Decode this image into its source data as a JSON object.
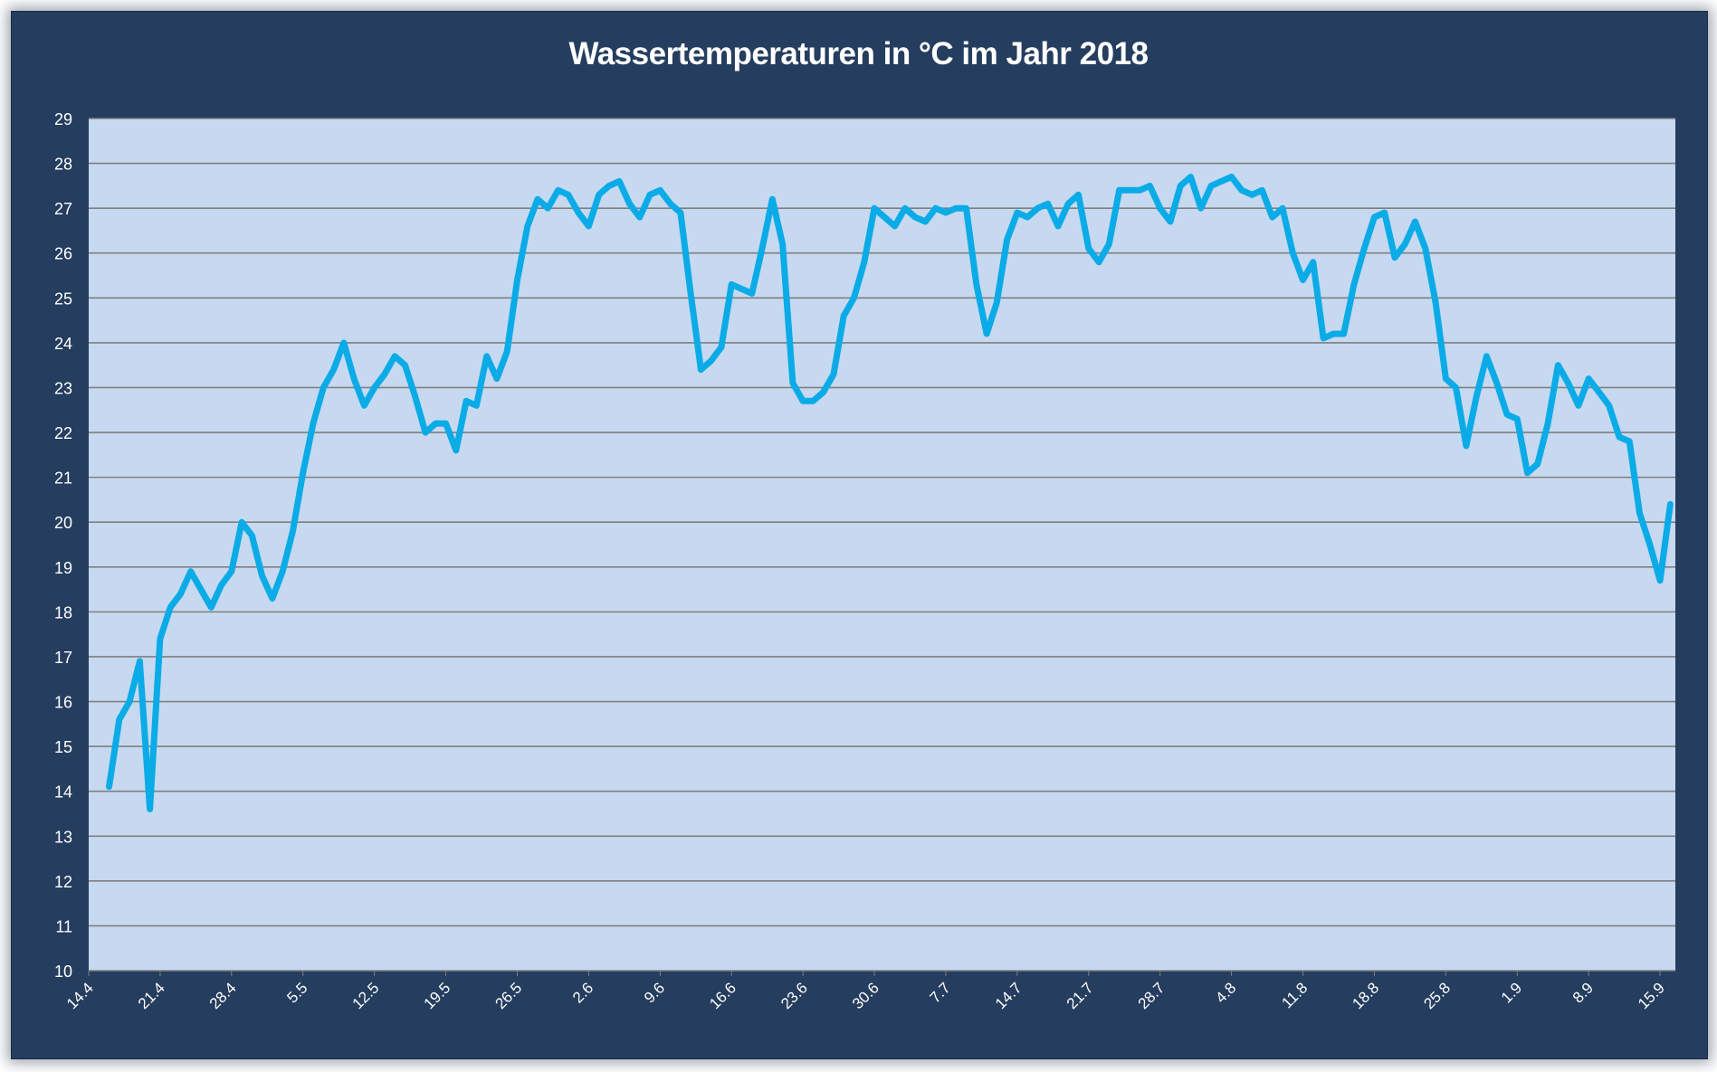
{
  "chart_data": {
    "type": "line",
    "title": "Wassertemperaturen in °C  im Jahr 2018",
    "xlabel": "",
    "ylabel": "",
    "ylim": [
      10,
      29
    ],
    "yticks": [
      10,
      11,
      12,
      13,
      14,
      15,
      16,
      17,
      18,
      19,
      20,
      21,
      22,
      23,
      24,
      25,
      26,
      27,
      28,
      29
    ],
    "grid": true,
    "legend": "none",
    "colors": {
      "line": "#0aabe6",
      "plot_bg": "#c6d9f0",
      "frame_bg": "#253d5e",
      "grid": "#7f7f7f",
      "text": "#ffffff"
    },
    "x_start": "14.4",
    "x_end": "17.9",
    "x_labels": [
      "14.4",
      "21.4",
      "28.4",
      "5.5",
      "12.5",
      "19.5",
      "26.5",
      "2.6",
      "9.6",
      "16.6",
      "23.6",
      "30.6",
      "7.7",
      "14.7",
      "21.7",
      "28.7",
      "4.8",
      "11.8",
      "18.8",
      "25.8",
      "1.9",
      "8.9",
      "15.9"
    ],
    "series": [
      {
        "values": [
          14.1,
          15.6,
          16.0,
          16.9,
          13.6,
          17.4,
          18.1,
          18.4,
          18.9,
          18.5,
          18.1,
          18.6,
          18.9,
          20.0,
          19.7,
          18.8,
          18.3,
          18.9,
          19.8,
          21.1,
          22.2,
          23.0,
          23.4,
          24.0,
          23.2,
          22.6,
          23.0,
          23.3,
          23.7,
          23.5,
          22.8,
          22.0,
          22.2,
          22.2,
          21.6,
          22.7,
          22.6,
          23.7,
          23.2,
          23.8,
          25.4,
          26.6,
          27.2,
          27.0,
          27.4,
          27.3,
          26.9,
          26.6,
          27.3,
          27.5,
          27.6,
          27.1,
          26.8,
          27.3,
          27.4,
          27.1,
          26.9,
          25.1,
          23.4,
          23.6,
          23.9,
          25.3,
          25.2,
          25.1,
          26.1,
          27.2,
          26.2,
          23.1,
          22.7,
          22.7,
          22.9,
          23.3,
          24.6,
          25.0,
          25.8,
          27.0,
          26.8,
          26.6,
          27.0,
          26.8,
          26.7,
          27.0,
          26.9,
          27.0,
          27.0,
          25.3,
          24.2,
          24.9,
          26.3,
          26.9,
          26.8,
          27.0,
          27.1,
          26.6,
          27.1,
          27.3,
          26.1,
          25.8,
          26.2,
          27.4,
          27.4,
          27.4,
          27.5,
          27.0,
          26.7,
          27.5,
          27.7,
          27.0,
          27.5,
          27.6,
          27.7,
          27.4,
          27.3,
          27.4,
          26.8,
          27.0,
          26.0,
          25.4,
          25.8,
          24.1,
          24.2,
          24.2,
          25.3,
          26.1,
          26.8,
          26.9,
          25.9,
          26.2,
          26.7,
          26.1,
          24.9,
          23.2,
          23.0,
          21.7,
          22.8,
          23.7,
          23.1,
          22.4,
          22.3,
          21.1,
          21.3,
          22.2,
          23.5,
          23.1,
          22.6,
          23.2,
          22.9,
          22.6,
          21.9,
          21.8,
          20.2,
          19.5,
          18.7,
          20.4
        ]
      }
    ]
  }
}
